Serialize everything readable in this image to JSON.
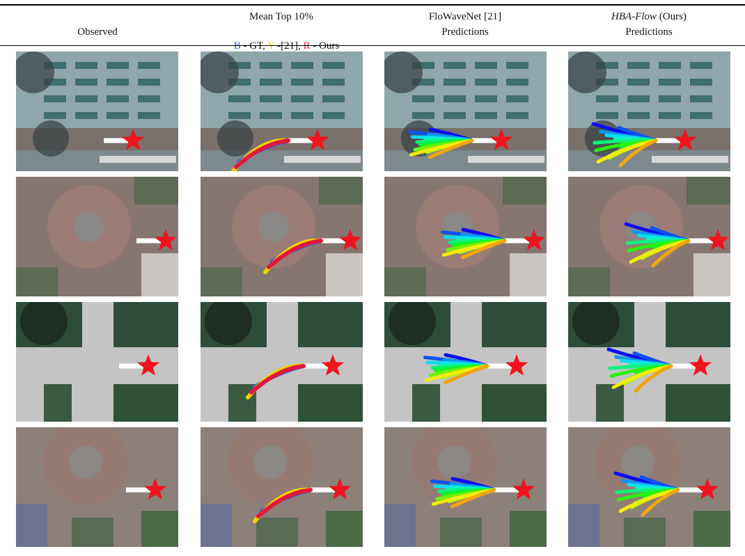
{
  "header": {
    "columns": [
      {
        "title": "Observed"
      },
      {
        "title": "Mean Top 10%",
        "legend": [
          {
            "letter": "B",
            "color": "#3b5bdb",
            "text": " - GT, "
          },
          {
            "letter": "Y",
            "color": "#f2d100",
            "text": " -[21], "
          },
          {
            "letter": "R",
            "color": "#e0193c",
            "text": " - Ours"
          }
        ]
      },
      {
        "title": "FloWaveNet [21]",
        "subtitle": "Predictions"
      },
      {
        "title_italic": "HBA-Flow",
        "title_rest": " (Ours)",
        "subtitle": "Predictions"
      }
    ]
  }
}
